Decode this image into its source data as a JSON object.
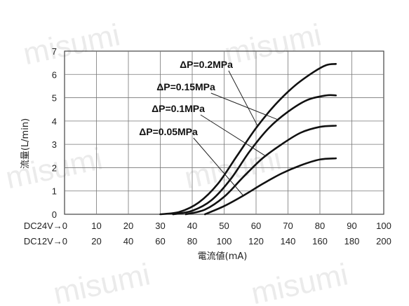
{
  "chart_data": {
    "type": "line",
    "title": "",
    "ylabel": "流量(L/min)",
    "xlabel": "電流値(mA)",
    "ylim": [
      0,
      7
    ],
    "yticks": [
      "0",
      "1",
      "2",
      "3",
      "4",
      "5",
      "6",
      "7"
    ],
    "xlim": [
      0,
      100
    ],
    "grid": true,
    "x_rows": [
      {
        "label": "DC24V→0",
        "ticks": [
          "10",
          "20",
          "30",
          "40",
          "50",
          "60",
          "70",
          "80",
          "90",
          "100"
        ]
      },
      {
        "label": "DC12V→0",
        "ticks": [
          "20",
          "40",
          "60",
          "80",
          "100",
          "120",
          "140",
          "160",
          "180",
          "200"
        ]
      }
    ],
    "series": [
      {
        "name": "ΔP=0.2MPa",
        "x": [
          30,
          36,
          42,
          48,
          54,
          60,
          66,
          72,
          78,
          82,
          85
        ],
        "y": [
          0,
          0.1,
          0.5,
          1.3,
          2.5,
          3.7,
          4.7,
          5.5,
          6.1,
          6.4,
          6.45
        ]
      },
      {
        "name": "ΔP=0.15MPa",
        "x": [
          34,
          40,
          46,
          52,
          58,
          64,
          70,
          76,
          82,
          85
        ],
        "y": [
          0,
          0.15,
          0.6,
          1.5,
          2.7,
          3.7,
          4.4,
          4.9,
          5.1,
          5.1
        ]
      },
      {
        "name": "ΔP=0.1MPa",
        "x": [
          38,
          44,
          50,
          56,
          62,
          68,
          74,
          80,
          85
        ],
        "y": [
          0,
          0.2,
          0.75,
          1.6,
          2.4,
          3.0,
          3.5,
          3.75,
          3.8
        ]
      },
      {
        "name": "ΔP=0.05MPa",
        "x": [
          44,
          50,
          56,
          62,
          68,
          74,
          80,
          85
        ],
        "y": [
          0,
          0.35,
          0.8,
          1.3,
          1.75,
          2.1,
          2.35,
          2.4
        ]
      }
    ],
    "labels": [
      "ΔP=0.2MPa",
      "ΔP=0.15MPa",
      "ΔP=0.1MPa",
      "ΔP=0.05MPa"
    ],
    "watermark": "misumi"
  }
}
